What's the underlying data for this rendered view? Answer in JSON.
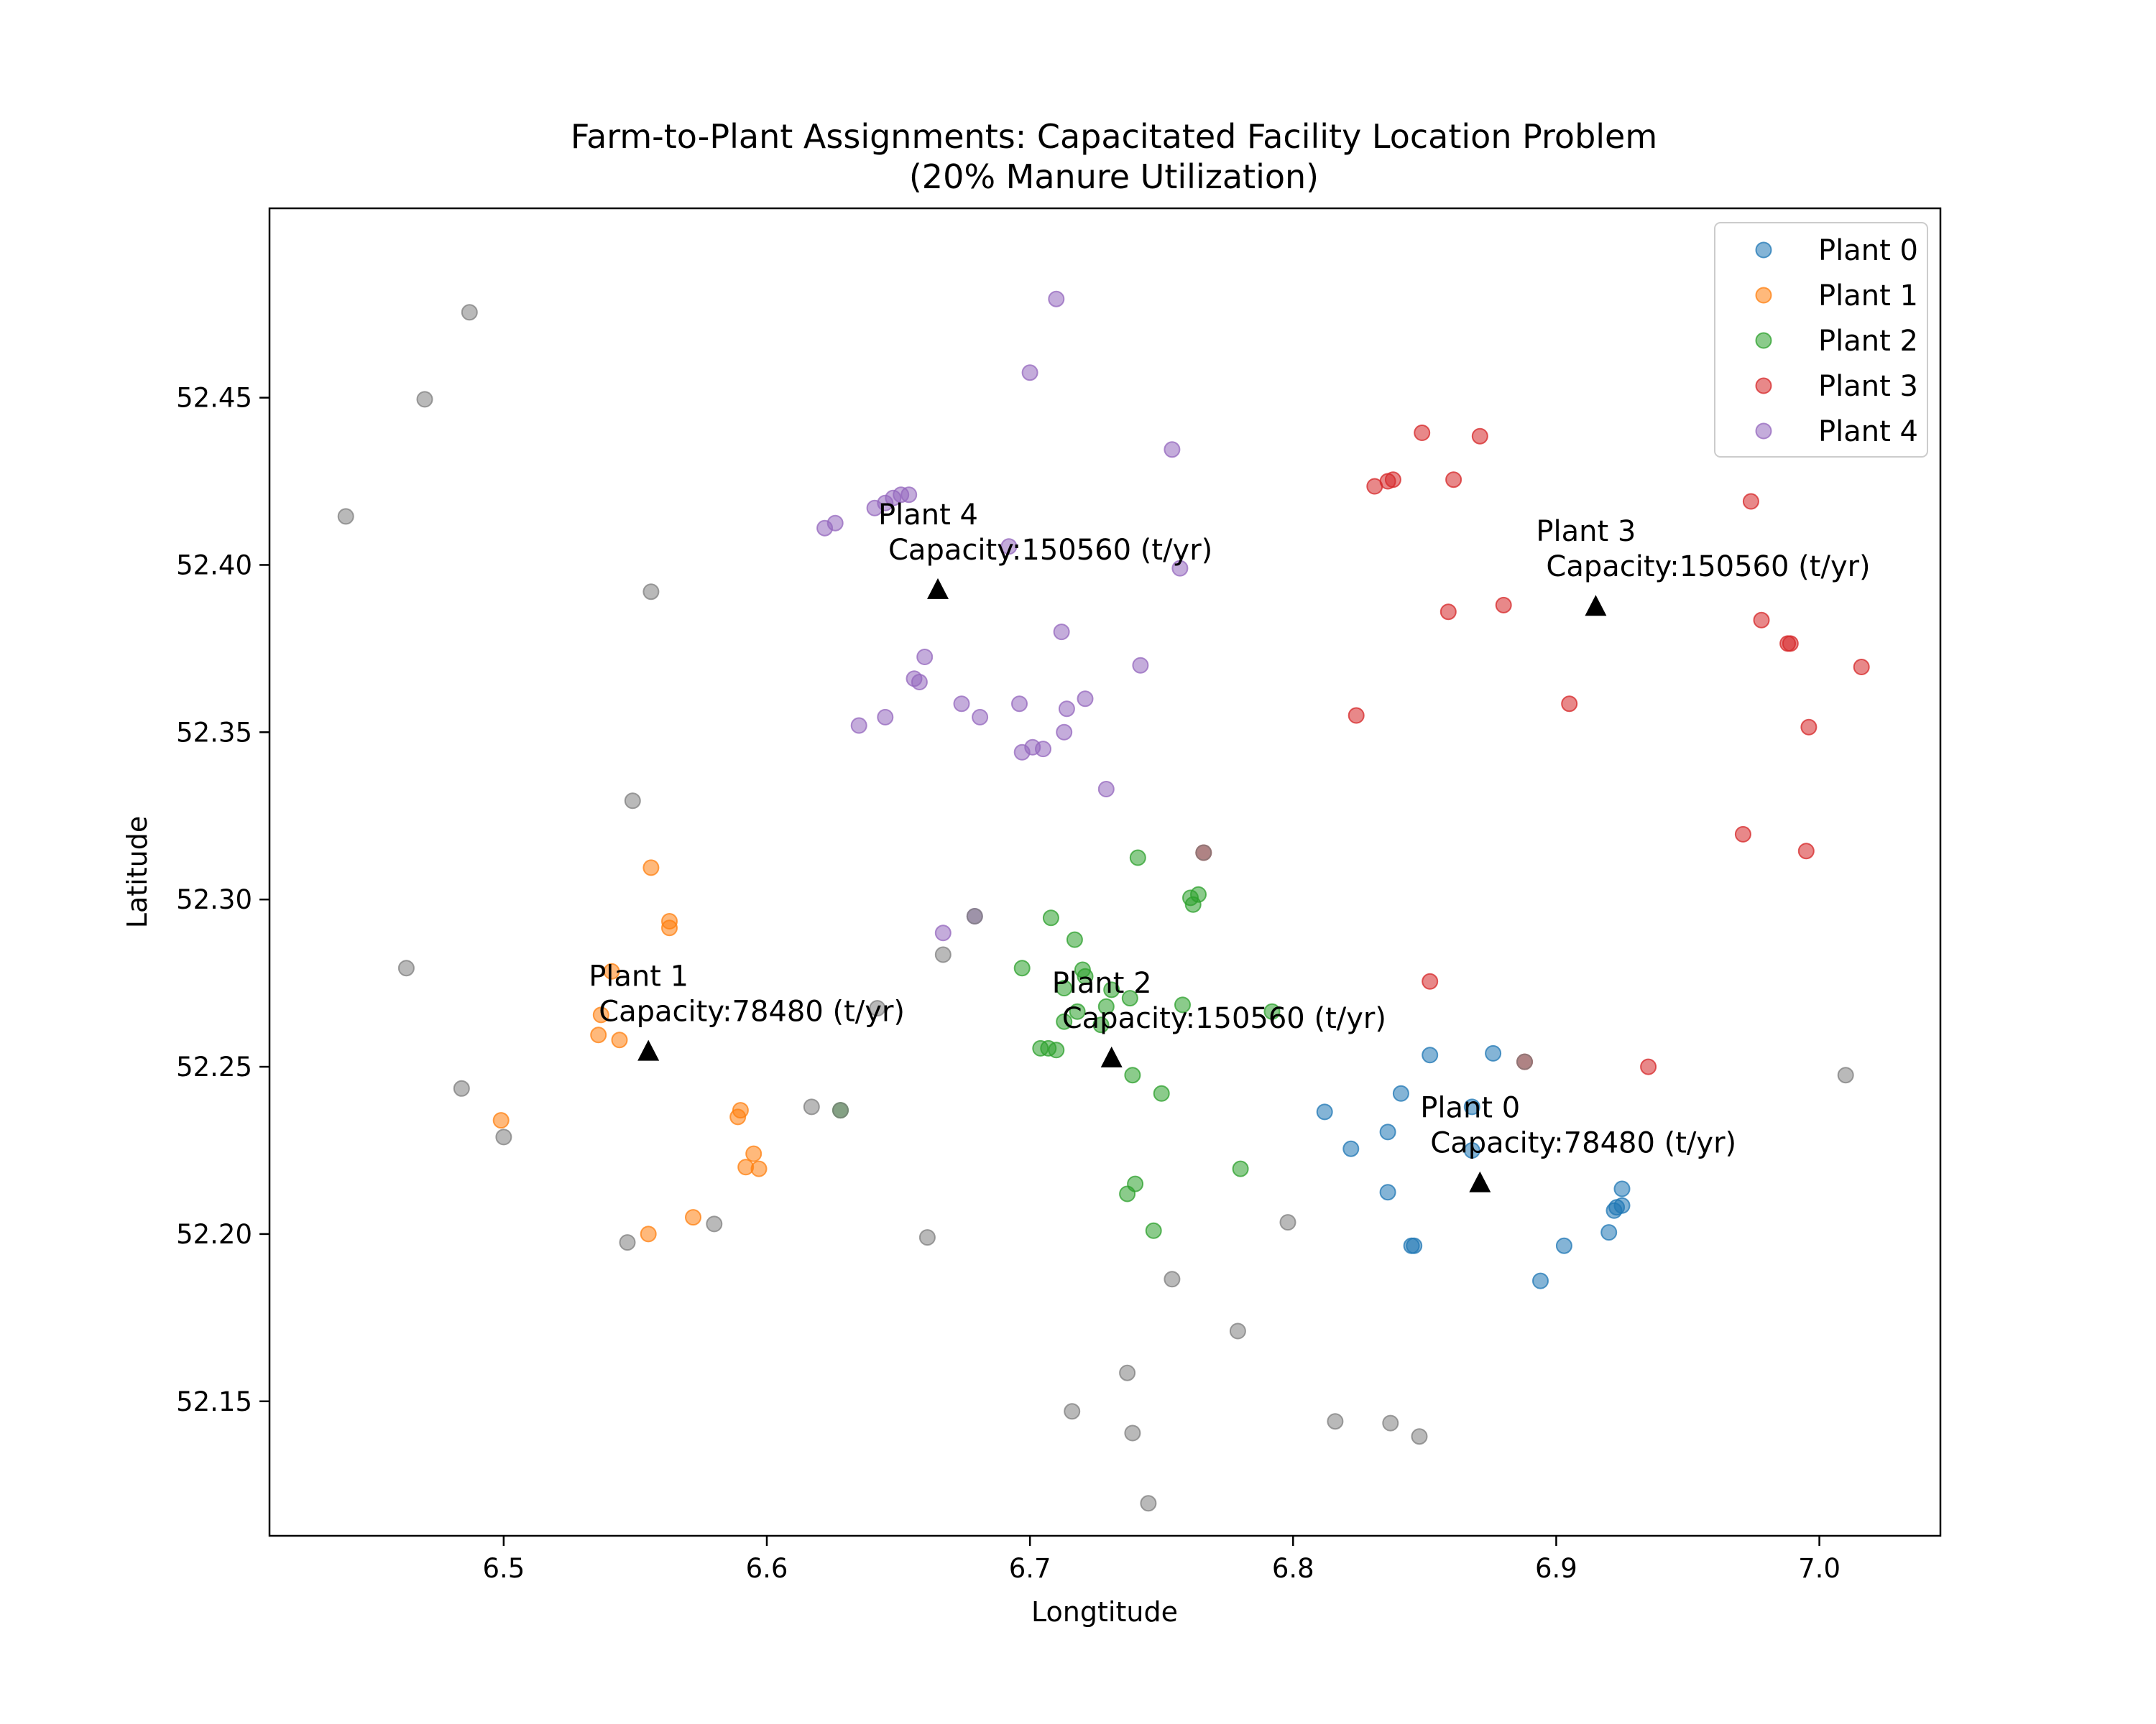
{
  "chart_data": {
    "type": "scatter",
    "title": "Farm-to-Plant Assignments: Capacitated Facility Location Problem",
    "subtitle": "(20% Manure Utilization)",
    "xlabel": "Longtitude",
    "ylabel": "Latitude",
    "xlim": [
      6.411,
      7.046
    ],
    "ylim": [
      52.1098,
      52.5066
    ],
    "xticks": [
      6.5,
      6.6,
      6.7,
      6.8,
      6.9,
      7.0
    ],
    "xtick_labels": [
      "6.5",
      "6.6",
      "6.7",
      "6.8",
      "6.9",
      "7.0"
    ],
    "yticks": [
      52.15,
      52.2,
      52.25,
      52.3,
      52.35,
      52.4,
      52.45
    ],
    "ytick_labels": [
      "52.15",
      "52.20",
      "52.25",
      "52.30",
      "52.35",
      "52.40",
      "52.45"
    ],
    "grid": false,
    "legend_position": "top-right",
    "series": [
      {
        "name": "Plant 0",
        "color": "#1f77b4",
        "x": [
          6.812,
          6.822,
          6.836,
          6.836,
          6.841,
          6.845,
          6.846,
          6.852,
          6.868,
          6.868,
          6.876,
          6.894,
          6.903,
          6.92,
          6.922,
          6.923,
          6.925,
          6.925
        ],
        "y": [
          52.2365,
          52.2255,
          52.2305,
          52.2125,
          52.242,
          52.1965,
          52.1965,
          52.2535,
          52.238,
          52.225,
          52.254,
          52.186,
          52.1965,
          52.2005,
          52.207,
          52.208,
          52.2135,
          52.2085
        ]
      },
      {
        "name": "Plant 1",
        "color": "#ff7f0e",
        "x": [
          6.499,
          6.536,
          6.537,
          6.541,
          6.544,
          6.555,
          6.556,
          6.563,
          6.563,
          6.572,
          6.589,
          6.59,
          6.592,
          6.595,
          6.597
        ],
        "y": [
          52.234,
          52.2595,
          52.2655,
          52.2785,
          52.258,
          52.2,
          52.3095,
          52.2935,
          52.2915,
          52.205,
          52.235,
          52.237,
          52.22,
          52.224,
          52.2195
        ]
      },
      {
        "name": "Plant 2",
        "color": "#2ca02c",
        "x": [
          6.628,
          6.697,
          6.704,
          6.707,
          6.708,
          6.71,
          6.713,
          6.713,
          6.717,
          6.718,
          6.72,
          6.721,
          6.727,
          6.729,
          6.731,
          6.737,
          6.738,
          6.739,
          6.74,
          6.741,
          6.747,
          6.75,
          6.758,
          6.761,
          6.762,
          6.764,
          6.78,
          6.792
        ],
        "y": [
          52.237,
          52.2795,
          52.2555,
          52.2555,
          52.2945,
          52.255,
          52.2735,
          52.2635,
          52.288,
          52.2665,
          52.279,
          52.277,
          52.2625,
          52.268,
          52.273,
          52.212,
          52.2705,
          52.2475,
          52.215,
          52.3125,
          52.201,
          52.242,
          52.2685,
          52.3005,
          52.2985,
          52.3015,
          52.2195,
          52.2665
        ]
      },
      {
        "name": "Plant 3",
        "color": "#d62728",
        "x": [
          6.766,
          6.824,
          6.831,
          6.836,
          6.838,
          6.849,
          6.852,
          6.859,
          6.861,
          6.871,
          6.88,
          6.888,
          6.905,
          6.935,
          6.971,
          6.974,
          6.978,
          6.988,
          6.989,
          6.995,
          6.996,
          7.016
        ],
        "y": [
          52.314,
          52.355,
          52.4235,
          52.425,
          52.4255,
          52.4395,
          52.2755,
          52.386,
          52.4255,
          52.4385,
          52.388,
          52.2515,
          52.3585,
          52.25,
          52.3195,
          52.419,
          52.3835,
          52.3765,
          52.3765,
          52.3145,
          52.3515,
          52.3695
        ]
      },
      {
        "name": "Plant 4",
        "color": "#9467bd",
        "x": [
          6.622,
          6.626,
          6.635,
          6.641,
          6.645,
          6.645,
          6.648,
          6.651,
          6.654,
          6.656,
          6.658,
          6.66,
          6.667,
          6.674,
          6.679,
          6.681,
          6.692,
          6.696,
          6.697,
          6.7,
          6.701,
          6.705,
          6.71,
          6.712,
          6.713,
          6.714,
          6.721,
          6.729,
          6.742,
          6.754,
          6.757
        ],
        "y": [
          52.411,
          52.4125,
          52.352,
          52.417,
          52.3545,
          52.4185,
          52.42,
          52.421,
          52.421,
          52.366,
          52.365,
          52.3725,
          52.29,
          52.3585,
          52.295,
          52.3545,
          52.4055,
          52.3585,
          52.344,
          52.4575,
          52.3455,
          52.345,
          52.4795,
          52.38,
          52.35,
          52.357,
          52.36,
          52.333,
          52.37,
          52.4345,
          52.399
        ]
      },
      {
        "name": "",
        "color": "#7f7f7f",
        "x": [
          6.44,
          6.463,
          6.47,
          6.484,
          6.487,
          6.5,
          6.547,
          6.549,
          6.556,
          6.58,
          6.617,
          6.628,
          6.642,
          6.661,
          6.667,
          6.679,
          6.716,
          6.737,
          6.739,
          6.745,
          6.754,
          6.766,
          6.779,
          6.798,
          6.816,
          6.837,
          6.848,
          6.888,
          7.01
        ],
        "y": [
          52.4145,
          52.2795,
          52.4495,
          52.2435,
          52.4755,
          52.229,
          52.1975,
          52.3295,
          52.392,
          52.203,
          52.238,
          52.237,
          52.2675,
          52.199,
          52.2835,
          52.295,
          52.147,
          52.1585,
          52.1405,
          52.1195,
          52.1865,
          52.314,
          52.171,
          52.2035,
          52.144,
          52.1435,
          52.1395,
          52.2515,
          52.2475
        ]
      }
    ],
    "plants": [
      {
        "name": "Plant 0",
        "capacity_text": "Capacity:78480 (t/yr)",
        "x": 6.871,
        "y": 52.2153
      },
      {
        "name": "Plant 1",
        "capacity_text": "Capacity:78480 (t/yr)",
        "x": 6.555,
        "y": 52.2546
      },
      {
        "name": "Plant 2",
        "capacity_text": "Capacity:150560 (t/yr)",
        "x": 6.731,
        "y": 52.2526
      },
      {
        "name": "Plant 3",
        "capacity_text": "Capacity:150560 (t/yr)",
        "x": 6.915,
        "y": 52.3876
      },
      {
        "name": "Plant 4",
        "capacity_text": "Capacity:150560 (t/yr)",
        "x": 6.665,
        "y": 52.3926
      }
    ]
  }
}
